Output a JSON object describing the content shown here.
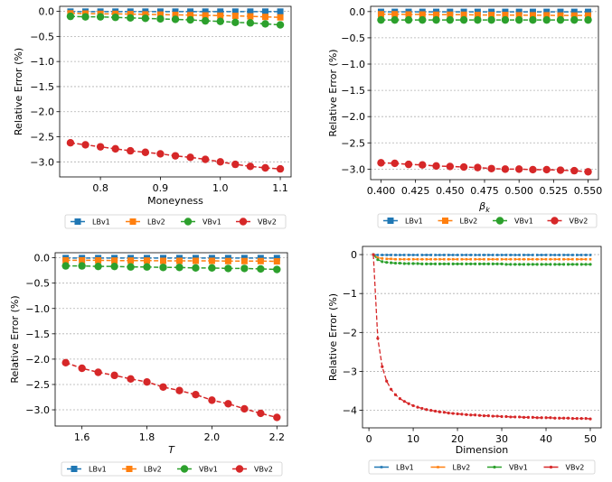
{
  "colors": {
    "LBv1": "#1f77b4",
    "LBv2": "#ff7f0e",
    "VBv1": "#2ca02c",
    "VBv2": "#d62728"
  },
  "chart_data": [
    {
      "type": "line",
      "title": "",
      "xlabel": "Moneyness",
      "ylabel": "Relative Error (%)",
      "xlim": [
        0.732,
        1.118
      ],
      "ylim": [
        -3.3,
        0.1
      ],
      "xticks": [
        0.8,
        0.9,
        1.0,
        1.1
      ],
      "xtick_labels": [
        "0.8",
        "0.9",
        "1.0",
        "1.1"
      ],
      "yticks": [
        0.0,
        -0.5,
        -1.0,
        -1.5,
        -2.0,
        -2.5,
        -3.0
      ],
      "ytick_labels": [
        "0.0",
        "−0.5",
        "−1.0",
        "−1.5",
        "−2.0",
        "−2.5",
        "−3.0"
      ],
      "grid": "horizontal-dotted",
      "legend_placement": "below",
      "x": [
        0.75,
        0.775,
        0.8,
        0.825,
        0.85,
        0.875,
        0.9,
        0.925,
        0.95,
        0.975,
        1.0,
        1.025,
        1.05,
        1.075,
        1.1
      ],
      "series": [
        {
          "name": "LBv1",
          "marker": "square",
          "values": [
            -0.005,
            -0.005,
            -0.005,
            -0.005,
            -0.005,
            -0.005,
            -0.005,
            -0.005,
            -0.005,
            -0.005,
            -0.005,
            -0.005,
            -0.005,
            -0.005,
            -0.005
          ]
        },
        {
          "name": "LBv2",
          "marker": "square",
          "values": [
            -0.04,
            -0.045,
            -0.05,
            -0.05,
            -0.055,
            -0.06,
            -0.065,
            -0.07,
            -0.075,
            -0.08,
            -0.085,
            -0.09,
            -0.1,
            -0.11,
            -0.12
          ]
        },
        {
          "name": "VBv1",
          "marker": "circle",
          "values": [
            -0.1,
            -0.11,
            -0.11,
            -0.12,
            -0.13,
            -0.14,
            -0.15,
            -0.16,
            -0.17,
            -0.19,
            -0.2,
            -0.22,
            -0.23,
            -0.25,
            -0.27
          ]
        },
        {
          "name": "VBv2",
          "marker": "circle",
          "values": [
            -2.62,
            -2.66,
            -2.7,
            -2.74,
            -2.78,
            -2.81,
            -2.84,
            -2.88,
            -2.91,
            -2.95,
            -3.0,
            -3.05,
            -3.09,
            -3.12,
            -3.14
          ]
        }
      ]
    },
    {
      "type": "line",
      "title": "",
      "xlabel": "β_k",
      "ylabel": "Relative Error (%)",
      "xlim": [
        0.3925,
        0.5575
      ],
      "ylim": [
        -3.2,
        0.1
      ],
      "xticks": [
        0.4,
        0.425,
        0.45,
        0.475,
        0.5,
        0.525,
        0.55
      ],
      "xtick_labels": [
        "0.400",
        "0.425",
        "0.450",
        "0.475",
        "0.500",
        "0.525",
        "0.550"
      ],
      "yticks": [
        0.0,
        -0.5,
        -1.0,
        -1.5,
        -2.0,
        -2.5,
        -3.0
      ],
      "ytick_labels": [
        "0.0",
        "−0.5",
        "−1.0",
        "−1.5",
        "−2.0",
        "−2.5",
        "−3.0"
      ],
      "grid": "horizontal-dotted",
      "legend_placement": "below",
      "x": [
        0.4,
        0.41,
        0.42,
        0.43,
        0.44,
        0.45,
        0.46,
        0.47,
        0.48,
        0.49,
        0.5,
        0.51,
        0.52,
        0.53,
        0.54,
        0.55
      ],
      "series": [
        {
          "name": "LBv1",
          "marker": "square",
          "values": [
            -0.005,
            -0.005,
            -0.005,
            -0.005,
            -0.005,
            -0.005,
            -0.005,
            -0.005,
            -0.005,
            -0.005,
            -0.005,
            -0.005,
            -0.005,
            -0.005,
            -0.005,
            -0.005
          ]
        },
        {
          "name": "LBv2",
          "marker": "square",
          "values": [
            -0.05,
            -0.05,
            -0.055,
            -0.055,
            -0.06,
            -0.06,
            -0.06,
            -0.065,
            -0.065,
            -0.065,
            -0.07,
            -0.07,
            -0.07,
            -0.075,
            -0.075,
            -0.075
          ]
        },
        {
          "name": "VBv1",
          "marker": "circle",
          "values": [
            -0.16,
            -0.16,
            -0.16,
            -0.16,
            -0.16,
            -0.16,
            -0.16,
            -0.16,
            -0.16,
            -0.16,
            -0.16,
            -0.16,
            -0.16,
            -0.16,
            -0.16,
            -0.16
          ]
        },
        {
          "name": "VBv2",
          "marker": "circle",
          "values": [
            -2.88,
            -2.89,
            -2.91,
            -2.92,
            -2.94,
            -2.95,
            -2.96,
            -2.97,
            -2.99,
            -3.0,
            -3.0,
            -3.01,
            -3.01,
            -3.02,
            -3.03,
            -3.05
          ]
        }
      ]
    },
    {
      "type": "line",
      "title": "",
      "xlabel": "T",
      "ylabel": "Relative Error (%)",
      "xlim": [
        1.5175,
        2.2325
      ],
      "ylim": [
        -3.32,
        0.1
      ],
      "xticks": [
        1.6,
        1.8,
        2.0,
        2.2
      ],
      "xtick_labels": [
        "1.6",
        "1.8",
        "2.0",
        "2.2"
      ],
      "yticks": [
        0.0,
        -0.5,
        -1.0,
        -1.5,
        -2.0,
        -2.5,
        -3.0
      ],
      "ytick_labels": [
        "0.0",
        "−0.5",
        "−1.0",
        "−1.5",
        "−2.0",
        "−2.5",
        "−3.0"
      ],
      "grid": "horizontal-dotted",
      "legend_placement": "below",
      "x": [
        1.55,
        1.6,
        1.65,
        1.7,
        1.75,
        1.8,
        1.85,
        1.9,
        1.95,
        2.0,
        2.05,
        2.1,
        2.15,
        2.2
      ],
      "series": [
        {
          "name": "LBv1",
          "marker": "square",
          "values": [
            -0.005,
            -0.005,
            -0.005,
            -0.005,
            -0.005,
            -0.005,
            -0.005,
            -0.005,
            -0.005,
            -0.005,
            -0.005,
            -0.005,
            -0.005,
            -0.005
          ]
        },
        {
          "name": "LBv2",
          "marker": "square",
          "values": [
            -0.05,
            -0.05,
            -0.05,
            -0.055,
            -0.055,
            -0.055,
            -0.06,
            -0.06,
            -0.06,
            -0.06,
            -0.065,
            -0.065,
            -0.065,
            -0.07
          ]
        },
        {
          "name": "VBv1",
          "marker": "circle",
          "values": [
            -0.16,
            -0.16,
            -0.17,
            -0.17,
            -0.18,
            -0.18,
            -0.19,
            -0.19,
            -0.2,
            -0.2,
            -0.21,
            -0.21,
            -0.22,
            -0.23
          ]
        },
        {
          "name": "VBv2",
          "marker": "circle",
          "values": [
            -2.07,
            -2.18,
            -2.26,
            -2.32,
            -2.39,
            -2.45,
            -2.55,
            -2.62,
            -2.7,
            -2.81,
            -2.88,
            -2.98,
            -3.07,
            -3.15
          ]
        }
      ]
    },
    {
      "type": "line",
      "title": "",
      "xlabel": "Dimension",
      "ylabel": "Relative Error (%)",
      "xlim": [
        -1.45,
        52.45
      ],
      "ylim": [
        -4.45,
        0.21
      ],
      "xticks": [
        0,
        10,
        20,
        30,
        40,
        50
      ],
      "xtick_labels": [
        "0",
        "10",
        "20",
        "30",
        "40",
        "50"
      ],
      "yticks": [
        0,
        -1,
        -2,
        -3,
        -4
      ],
      "ytick_labels": [
        "0",
        "−1",
        "−2",
        "−3",
        "−4"
      ],
      "grid": "horizontal-dotted",
      "legend_placement": "below",
      "x_range": [
        1,
        50
      ],
      "series": [
        {
          "name": "LBv1",
          "marker": "small-square",
          "values": [
            0,
            -0.01,
            -0.01,
            -0.01,
            -0.01,
            -0.01,
            -0.01,
            -0.01,
            -0.01,
            -0.01,
            -0.01,
            -0.01,
            -0.01,
            -0.01,
            -0.01,
            -0.01,
            -0.01,
            -0.01,
            -0.01,
            -0.01,
            -0.01,
            -0.01,
            -0.01,
            -0.01,
            -0.01,
            -0.01,
            -0.01,
            -0.01,
            -0.01,
            -0.01,
            -0.01,
            -0.01,
            -0.01,
            -0.01,
            -0.01,
            -0.01,
            -0.01,
            -0.01,
            -0.01,
            -0.01,
            -0.01,
            -0.01,
            -0.01,
            -0.01,
            -0.01,
            -0.01,
            -0.01,
            -0.01,
            -0.01,
            -0.01
          ]
        },
        {
          "name": "LBv2",
          "marker": "small-square",
          "values": [
            0,
            -0.08,
            -0.1,
            -0.11,
            -0.11,
            -0.12,
            -0.12,
            -0.12,
            -0.12,
            -0.12,
            -0.12,
            -0.12,
            -0.12,
            -0.12,
            -0.12,
            -0.12,
            -0.12,
            -0.12,
            -0.12,
            -0.12,
            -0.12,
            -0.12,
            -0.12,
            -0.12,
            -0.12,
            -0.12,
            -0.12,
            -0.12,
            -0.12,
            -0.12,
            -0.12,
            -0.12,
            -0.12,
            -0.12,
            -0.12,
            -0.12,
            -0.12,
            -0.12,
            -0.12,
            -0.12,
            -0.12,
            -0.12,
            -0.12,
            -0.12,
            -0.12,
            -0.12,
            -0.12,
            -0.12,
            -0.12,
            -0.12
          ]
        },
        {
          "name": "VBv1",
          "marker": "small-circle",
          "values": [
            0,
            -0.13,
            -0.18,
            -0.2,
            -0.21,
            -0.22,
            -0.22,
            -0.23,
            -0.23,
            -0.23,
            -0.23,
            -0.24,
            -0.24,
            -0.24,
            -0.24,
            -0.24,
            -0.24,
            -0.24,
            -0.24,
            -0.24,
            -0.24,
            -0.24,
            -0.24,
            -0.24,
            -0.24,
            -0.24,
            -0.24,
            -0.24,
            -0.24,
            -0.24,
            -0.25,
            -0.25,
            -0.25,
            -0.25,
            -0.25,
            -0.25,
            -0.25,
            -0.25,
            -0.25,
            -0.25,
            -0.25,
            -0.25,
            -0.25,
            -0.25,
            -0.25,
            -0.25,
            -0.25,
            -0.25,
            -0.25,
            -0.25
          ]
        },
        {
          "name": "VBv2",
          "marker": "small-circle",
          "values": [
            0,
            -2.15,
            -2.88,
            -3.25,
            -3.46,
            -3.6,
            -3.7,
            -3.77,
            -3.83,
            -3.88,
            -3.92,
            -3.95,
            -3.98,
            -4.0,
            -4.02,
            -4.04,
            -4.05,
            -4.07,
            -4.08,
            -4.09,
            -4.1,
            -4.11,
            -4.12,
            -4.12,
            -4.13,
            -4.14,
            -4.14,
            -4.15,
            -4.15,
            -4.16,
            -4.16,
            -4.17,
            -4.17,
            -4.17,
            -4.18,
            -4.18,
            -4.18,
            -4.19,
            -4.19,
            -4.19,
            -4.19,
            -4.2,
            -4.2,
            -4.2,
            -4.2,
            -4.21,
            -4.21,
            -4.21,
            -4.21,
            -4.22
          ]
        }
      ]
    }
  ]
}
